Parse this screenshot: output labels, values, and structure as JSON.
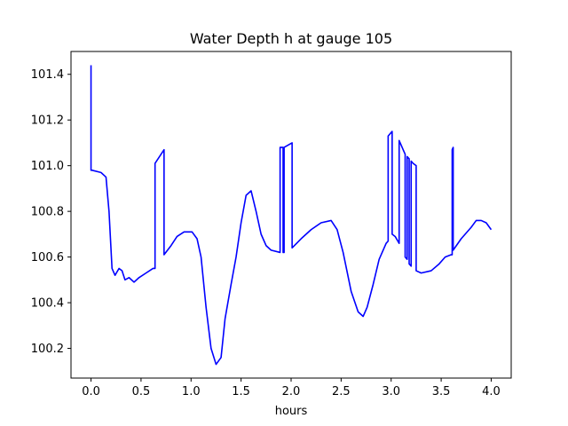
{
  "chart_data": {
    "type": "line",
    "title": "Water Depth h at gauge 105",
    "xlabel": "hours",
    "ylabel": "",
    "xlim": [
      -0.2,
      4.2
    ],
    "ylim": [
      100.07,
      101.5
    ],
    "xticks": [
      0.0,
      0.5,
      1.0,
      1.5,
      2.0,
      2.5,
      3.0,
      3.5,
      4.0
    ],
    "xtick_labels": [
      "0.0",
      "0.5",
      "1.0",
      "1.5",
      "2.0",
      "2.5",
      "3.0",
      "3.5",
      "4.0"
    ],
    "yticks": [
      100.2,
      100.4,
      100.6,
      100.8,
      101.0,
      101.2,
      101.4
    ],
    "ytick_labels": [
      "100.2",
      "100.4",
      "100.6",
      "100.8",
      "101.0",
      "101.2",
      "101.4"
    ],
    "grid": false,
    "series": [
      {
        "color": "#0000ff",
        "x": [
          0.0,
          0.0,
          0.01,
          0.1,
          0.15,
          0.18,
          0.21,
          0.24,
          0.28,
          0.31,
          0.34,
          0.38,
          0.43,
          0.48,
          0.55,
          0.62,
          0.64,
          0.64,
          0.73,
          0.73,
          0.8,
          0.86,
          0.93,
          1.01,
          1.06,
          1.1,
          1.15,
          1.2,
          1.25,
          1.3,
          1.34,
          1.4,
          1.45,
          1.5,
          1.55,
          1.6,
          1.65,
          1.7,
          1.75,
          1.8,
          1.89,
          1.89,
          1.92,
          1.92,
          1.93,
          1.93,
          2.01,
          2.01,
          2.1,
          2.2,
          2.3,
          2.4,
          2.46,
          2.52,
          2.6,
          2.67,
          2.72,
          2.76,
          2.82,
          2.88,
          2.95,
          2.97,
          2.97,
          3.01,
          3.01,
          3.04,
          3.08,
          3.08,
          3.12,
          3.14,
          3.14,
          3.16,
          3.16,
          3.18,
          3.18,
          3.2,
          3.2,
          3.22,
          3.22,
          3.25,
          3.25,
          3.3,
          3.4,
          3.48,
          3.54,
          3.6,
          3.61,
          3.61,
          3.62,
          3.62,
          3.7,
          3.8,
          3.85,
          3.9,
          3.95,
          4.0
        ],
        "y": [
          101.44,
          100.98,
          100.98,
          100.97,
          100.95,
          100.8,
          100.55,
          100.52,
          100.55,
          100.54,
          100.5,
          100.51,
          100.49,
          100.51,
          100.53,
          100.55,
          100.55,
          101.01,
          101.07,
          100.61,
          100.65,
          100.69,
          100.71,
          100.71,
          100.68,
          100.6,
          100.38,
          100.2,
          100.13,
          100.16,
          100.33,
          100.48,
          100.6,
          100.75,
          100.87,
          100.89,
          100.8,
          100.7,
          100.65,
          100.63,
          100.62,
          101.08,
          101.08,
          100.62,
          100.62,
          101.08,
          101.1,
          100.64,
          100.68,
          100.72,
          100.75,
          100.76,
          100.72,
          100.62,
          100.45,
          100.36,
          100.34,
          100.38,
          100.48,
          100.59,
          100.66,
          100.67,
          101.13,
          101.15,
          100.7,
          100.69,
          100.66,
          101.11,
          101.07,
          101.05,
          100.6,
          100.59,
          101.04,
          101.03,
          100.57,
          100.56,
          101.02,
          101.01,
          101.01,
          101.0,
          100.54,
          100.53,
          100.54,
          100.57,
          100.6,
          100.61,
          100.61,
          101.07,
          101.08,
          100.63,
          100.68,
          100.73,
          100.76,
          100.76,
          100.75,
          100.72
        ]
      }
    ]
  }
}
